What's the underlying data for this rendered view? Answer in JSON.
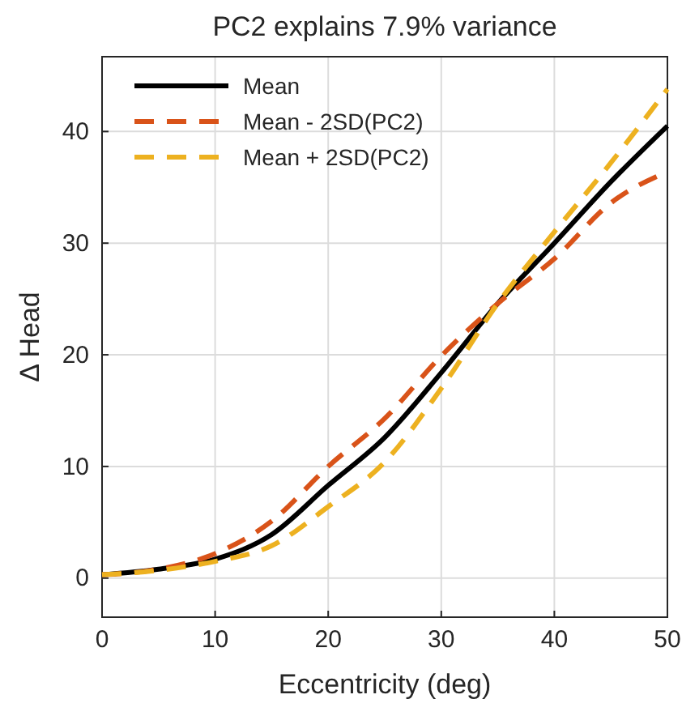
{
  "chart_data": {
    "type": "line",
    "title": "PC2 explains 7.9% variance",
    "xlabel": "Eccentricity (deg)",
    "ylabel": "Δ Head",
    "x": [
      0,
      5,
      10,
      15,
      20,
      25,
      30,
      35,
      40,
      45,
      50
    ],
    "series": [
      {
        "name": "Mean",
        "color": "#000000",
        "line_style": "solid",
        "values": [
          0.3,
          0.8,
          1.7,
          3.9,
          8.3,
          12.6,
          18.4,
          24.6,
          30.0,
          35.5,
          40.5
        ]
      },
      {
        "name": "Mean - 2SD(PC2)",
        "color": "#d95319",
        "line_style": "dashed",
        "values": [
          0.3,
          0.8,
          2.2,
          5.1,
          10.0,
          14.3,
          19.9,
          24.6,
          28.6,
          33.6,
          36.4
        ]
      },
      {
        "name": "Mean + 2SD(PC2)",
        "color": "#edb120",
        "line_style": "dashed",
        "values": [
          0.3,
          0.7,
          1.5,
          2.9,
          6.4,
          10.4,
          17.0,
          24.6,
          31.0,
          37.2,
          43.8
        ]
      }
    ],
    "xlim": [
      0,
      50
    ],
    "xticks": [
      0,
      10,
      20,
      30,
      40,
      50
    ],
    "ylim": [
      -3.5,
      46.7
    ],
    "yticks": [
      0,
      10,
      20,
      30,
      40
    ],
    "grid": true,
    "legend": "top left",
    "marker": "none"
  }
}
